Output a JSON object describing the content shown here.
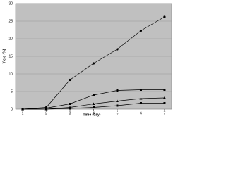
{
  "chart_data": {
    "type": "line",
    "x_label": "Time (day)",
    "y_label": "Yield (%)",
    "x": [
      1,
      2,
      3,
      4,
      5,
      6,
      7
    ],
    "series": [
      {
        "color": "#000000",
        "marker": "circle",
        "values": [
          0,
          0.5,
          8.3,
          13,
          17,
          22.3,
          26.2
        ]
      },
      {
        "color": "#000000",
        "marker": "square",
        "values": [
          0,
          0.3,
          1.5,
          4,
          5.3,
          5.5,
          5.5
        ]
      },
      {
        "color": "#000000",
        "marker": "triangle",
        "values": [
          0,
          0,
          0.5,
          1.5,
          2.3,
          3,
          3.2
        ]
      },
      {
        "color": "#000000",
        "marker": "square",
        "values": [
          0,
          0,
          0.2,
          0.5,
          1,
          1.7,
          1.7
        ]
      }
    ],
    "xlim": [
      0.7,
      7.3
    ],
    "xticks": [
      1,
      2,
      3,
      4,
      5,
      6,
      7
    ],
    "ylim": [
      0,
      30
    ],
    "yticks": [
      0,
      5,
      10,
      15,
      20,
      25,
      30
    ],
    "grid": true,
    "background": "#c0c0c0"
  }
}
